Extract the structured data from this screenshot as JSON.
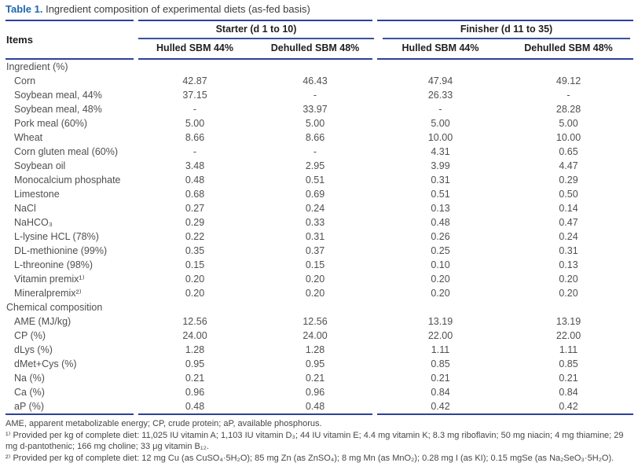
{
  "title": {
    "label": "Table 1.",
    "text": "Ingredient composition of experimental diets (as-fed basis)"
  },
  "table": {
    "items_header": "Items",
    "groups": [
      {
        "label": "Starter (d 1 to 10)",
        "columns": [
          "Hulled SBM 44%",
          "Dehulled SBM 48%"
        ]
      },
      {
        "label": "Finisher (d 11 to 35)",
        "columns": [
          "Hulled SBM 44%",
          "Dehulled SBM 48%"
        ]
      }
    ],
    "sections": [
      {
        "header": "Ingredient (%)",
        "rows": [
          {
            "label": "Corn",
            "values": [
              "42.87",
              "46.43",
              "47.94",
              "49.12"
            ]
          },
          {
            "label": "Soybean meal, 44%",
            "values": [
              "37.15",
              "-",
              "26.33",
              "-"
            ]
          },
          {
            "label": "Soybean meal, 48%",
            "values": [
              "-",
              "33.97",
              "-",
              "28.28"
            ]
          },
          {
            "label": "Pork meal (60%)",
            "values": [
              "5.00",
              "5.00",
              "5.00",
              "5.00"
            ]
          },
          {
            "label": "Wheat",
            "values": [
              "8.66",
              "8.66",
              "10.00",
              "10.00"
            ]
          },
          {
            "label": "Corn gluten meal (60%)",
            "values": [
              "-",
              "-",
              "4.31",
              "0.65"
            ]
          },
          {
            "label": "Soybean oil",
            "values": [
              "3.48",
              "2.95",
              "3.99",
              "4.47"
            ]
          },
          {
            "label": "Monocalcium phosphate",
            "values": [
              "0.48",
              "0.51",
              "0.31",
              "0.29"
            ]
          },
          {
            "label": "Limestone",
            "values": [
              "0.68",
              "0.69",
              "0.51",
              "0.50"
            ]
          },
          {
            "label": "NaCl",
            "values": [
              "0.27",
              "0.24",
              "0.13",
              "0.14"
            ]
          },
          {
            "label": "NaHCO₃",
            "values": [
              "0.29",
              "0.33",
              "0.48",
              "0.47"
            ]
          },
          {
            "label": "L-lysine HCL (78%)",
            "values": [
              "0.22",
              "0.31",
              "0.26",
              "0.24"
            ]
          },
          {
            "label": "DL-methionine (99%)",
            "values": [
              "0.35",
              "0.37",
              "0.25",
              "0.31"
            ]
          },
          {
            "label": "L-threonine (98%)",
            "values": [
              "0.15",
              "0.15",
              "0.10",
              "0.13"
            ]
          },
          {
            "label": "Vitamin premix¹⁾",
            "values": [
              "0.20",
              "0.20",
              "0.20",
              "0.20"
            ]
          },
          {
            "label": "Mineralpremix²⁾",
            "values": [
              "0.20",
              "0.20",
              "0.20",
              "0.20"
            ]
          }
        ]
      },
      {
        "header": "Chemical composition",
        "rows": [
          {
            "label": "AME (MJ/kg)",
            "values": [
              "12.56",
              "12.56",
              "13.19",
              "13.19"
            ]
          },
          {
            "label": "CP (%)",
            "values": [
              "24.00",
              "24.00",
              "22.00",
              "22.00"
            ]
          },
          {
            "label": "dLys (%)",
            "values": [
              "1.28",
              "1.28",
              "1.11",
              "1.11"
            ]
          },
          {
            "label": "dMet+Cys (%)",
            "values": [
              "0.95",
              "0.95",
              "0.85",
              "0.85"
            ]
          },
          {
            "label": "Na (%)",
            "values": [
              "0.21",
              "0.21",
              "0.21",
              "0.21"
            ]
          },
          {
            "label": "Ca (%)",
            "values": [
              "0.96",
              "0.96",
              "0.84",
              "0.84"
            ]
          },
          {
            "label": "aP (%)",
            "values": [
              "0.48",
              "0.48",
              "0.42",
              "0.42"
            ]
          }
        ]
      }
    ]
  },
  "footnotes": [
    {
      "marker": "",
      "text": "AME, apparent metabolizable energy; CP, crude protein; aP, available phosphorus."
    },
    {
      "marker": "¹⁾",
      "text": "Provided per kg of complete diet: 11,025 IU vitamin A; 1,103 IU vitamin D₃; 44 IU vitamin E; 4.4 mg vitamin K; 8.3 mg riboflavin; 50 mg niacin; 4 mg thiamine; 29 mg d-pantothenic; 166 mg choline; 33 μg vitamin B₁₂."
    },
    {
      "marker": "²⁾",
      "text": "Provided per kg of complete diet: 12 mg Cu (as CuSO₄·5H₂O); 85 mg Zn (as ZnSO₄); 8 mg Mn (as MnO₂); 0.28 mg I (as KI); 0.15 mgSe (as Na₂SeO₃·5H₂O)."
    }
  ],
  "colors": {
    "rule": "#2c4198",
    "title_accent": "#2166ae",
    "header_text": "#1f1f1f",
    "body_text": "#4f4f4f"
  }
}
